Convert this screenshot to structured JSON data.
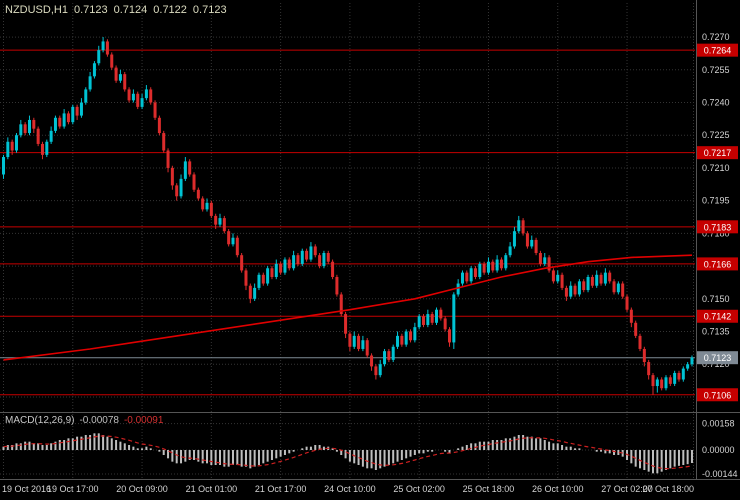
{
  "header": {
    "symbol": "NZDUSD,H1",
    "open": "0.7123",
    "high": "0.7124",
    "low": "0.7122",
    "close": "0.7123"
  },
  "colors": {
    "background": "#000000",
    "grid": "#343434",
    "bull": "#00c3d4",
    "bear": "#dd2c2c",
    "line_red": "#c60000",
    "ma": "#e00000",
    "hist": "#bfbfbf",
    "signal": "#cc2020",
    "axis_text": "#d4d4d4",
    "current_label_bg": "#7f8a95",
    "divider": "#555555"
  },
  "chart_data": {
    "type": "candlestick",
    "symbol": "NZDUSD",
    "timeframe": "H1",
    "y_axis": {
      "ticks": [
        "0.7270",
        "0.7255",
        "0.7240",
        "0.7225",
        "0.7210",
        "0.7195",
        "0.7180",
        "0.7165",
        "0.7150",
        "0.7135",
        "0.7120",
        "0.7105"
      ],
      "min": 0.7099,
      "max": 0.7287
    },
    "x_axis": {
      "labels": [
        "19 Oct 2016",
        "19 Oct 17:00",
        "20 Oct 09:00",
        "21 Oct 01:00",
        "21 Oct 17:00",
        "24 Oct 10:00",
        "25 Oct 02:00",
        "25 Oct 18:00",
        "26 Oct 10:00",
        "27 Oct 02:00",
        "27 Oct 18:00"
      ],
      "candles_per_label": 16
    },
    "hlines": [
      {
        "price": 0.7264,
        "label": "0.7264"
      },
      {
        "price": 0.7217,
        "label": "0.7217"
      },
      {
        "price": 0.7183,
        "label": "0.7183"
      },
      {
        "price": 0.7166,
        "label": "0.7166"
      },
      {
        "price": 0.7142,
        "label": "0.7142"
      },
      {
        "price": 0.7106,
        "label": "0.7106"
      }
    ],
    "current_price": {
      "price": 0.7123,
      "label": "0.7123"
    },
    "candles": [
      [
        0.7207,
        0.7216,
        0.7205,
        0.7215
      ],
      [
        0.7215,
        0.7224,
        0.7214,
        0.7222
      ],
      [
        0.7222,
        0.7223,
        0.7216,
        0.7218
      ],
      [
        0.7218,
        0.7226,
        0.7217,
        0.7225
      ],
      [
        0.7225,
        0.7232,
        0.7224,
        0.723
      ],
      [
        0.723,
        0.7231,
        0.7225,
        0.7226
      ],
      [
        0.7226,
        0.7234,
        0.7225,
        0.7232
      ],
      [
        0.7232,
        0.7233,
        0.7226,
        0.7228
      ],
      [
        0.7228,
        0.7229,
        0.722,
        0.7221
      ],
      [
        0.7221,
        0.7222,
        0.7214,
        0.7216
      ],
      [
        0.7216,
        0.7223,
        0.7215,
        0.7222
      ],
      [
        0.7222,
        0.7229,
        0.7221,
        0.7227
      ],
      [
        0.7227,
        0.7234,
        0.7226,
        0.7233
      ],
      [
        0.7233,
        0.7234,
        0.7228,
        0.7229
      ],
      [
        0.7229,
        0.7237,
        0.7228,
        0.7235
      ],
      [
        0.7235,
        0.7236,
        0.723,
        0.7231
      ],
      [
        0.7231,
        0.7239,
        0.723,
        0.7238
      ],
      [
        0.7238,
        0.7239,
        0.7232,
        0.7234
      ],
      [
        0.7234,
        0.7242,
        0.7233,
        0.724
      ],
      [
        0.724,
        0.7247,
        0.7239,
        0.7246
      ],
      [
        0.7246,
        0.7254,
        0.7245,
        0.7252
      ],
      [
        0.7252,
        0.7259,
        0.7251,
        0.7258
      ],
      [
        0.7258,
        0.7266,
        0.7257,
        0.7264
      ],
      [
        0.7264,
        0.727,
        0.7263,
        0.7268
      ],
      [
        0.7268,
        0.7269,
        0.7261,
        0.7262
      ],
      [
        0.7262,
        0.7263,
        0.7255,
        0.7256
      ],
      [
        0.7256,
        0.7257,
        0.7249,
        0.725
      ],
      [
        0.725,
        0.7255,
        0.7249,
        0.7253
      ],
      [
        0.7253,
        0.7254,
        0.7245,
        0.7246
      ],
      [
        0.7246,
        0.7247,
        0.724,
        0.7241
      ],
      [
        0.7241,
        0.7246,
        0.724,
        0.7244
      ],
      [
        0.7244,
        0.7245,
        0.7237,
        0.7238
      ],
      [
        0.7238,
        0.7244,
        0.7237,
        0.7242
      ],
      [
        0.7242,
        0.7248,
        0.7241,
        0.7246
      ],
      [
        0.7246,
        0.7247,
        0.7239,
        0.724
      ],
      [
        0.724,
        0.7241,
        0.7232,
        0.7233
      ],
      [
        0.7233,
        0.7234,
        0.7225,
        0.7226
      ],
      [
        0.7226,
        0.7227,
        0.7217,
        0.7218
      ],
      [
        0.7218,
        0.7219,
        0.7208,
        0.721
      ],
      [
        0.721,
        0.7211,
        0.72,
        0.7202
      ],
      [
        0.7202,
        0.7203,
        0.7195,
        0.7197
      ],
      [
        0.7197,
        0.7207,
        0.7196,
        0.7205
      ],
      [
        0.7205,
        0.7215,
        0.7204,
        0.7213
      ],
      [
        0.7213,
        0.7214,
        0.7206,
        0.7207
      ],
      [
        0.7207,
        0.7208,
        0.7199,
        0.72
      ],
      [
        0.72,
        0.7201,
        0.7195,
        0.7196
      ],
      [
        0.7196,
        0.7197,
        0.719,
        0.7191
      ],
      [
        0.7191,
        0.7196,
        0.719,
        0.7194
      ],
      [
        0.7194,
        0.7195,
        0.7187,
        0.7188
      ],
      [
        0.7188,
        0.7189,
        0.7182,
        0.7184
      ],
      [
        0.7184,
        0.7189,
        0.7183,
        0.7187
      ],
      [
        0.7187,
        0.7188,
        0.718,
        0.7181
      ],
      [
        0.7181,
        0.7182,
        0.7174,
        0.7175
      ],
      [
        0.7175,
        0.718,
        0.7174,
        0.7178
      ],
      [
        0.7178,
        0.7179,
        0.7169,
        0.717
      ],
      [
        0.717,
        0.7171,
        0.7162,
        0.7163
      ],
      [
        0.7163,
        0.7164,
        0.7154,
        0.7156
      ],
      [
        0.7156,
        0.7157,
        0.7148,
        0.715
      ],
      [
        0.715,
        0.7157,
        0.7149,
        0.7155
      ],
      [
        0.7155,
        0.7162,
        0.7154,
        0.7161
      ],
      [
        0.7161,
        0.7162,
        0.7156,
        0.7157
      ],
      [
        0.7157,
        0.7165,
        0.7156,
        0.7164
      ],
      [
        0.7164,
        0.7165,
        0.7159,
        0.716
      ],
      [
        0.716,
        0.7168,
        0.7159,
        0.7166
      ],
      [
        0.7166,
        0.7167,
        0.7161,
        0.7162
      ],
      [
        0.7162,
        0.7169,
        0.7161,
        0.7168
      ],
      [
        0.7168,
        0.7169,
        0.7163,
        0.7164
      ],
      [
        0.7164,
        0.7172,
        0.7163,
        0.717
      ],
      [
        0.717,
        0.7171,
        0.7165,
        0.7166
      ],
      [
        0.7166,
        0.7173,
        0.7165,
        0.7172
      ],
      [
        0.7172,
        0.7173,
        0.7167,
        0.7168
      ],
      [
        0.7168,
        0.7176,
        0.7167,
        0.7174
      ],
      [
        0.7174,
        0.7175,
        0.7169,
        0.717
      ],
      [
        0.717,
        0.7171,
        0.7164,
        0.7165
      ],
      [
        0.7165,
        0.7172,
        0.7164,
        0.7171
      ],
      [
        0.7171,
        0.7172,
        0.7166,
        0.7167
      ],
      [
        0.7167,
        0.7168,
        0.7159,
        0.716
      ],
      [
        0.716,
        0.7161,
        0.7151,
        0.7152
      ],
      [
        0.7152,
        0.7153,
        0.7142,
        0.7143
      ],
      [
        0.7143,
        0.7144,
        0.7132,
        0.7134
      ],
      [
        0.7134,
        0.7135,
        0.7126,
        0.7128
      ],
      [
        0.7128,
        0.7135,
        0.7127,
        0.7133
      ],
      [
        0.7133,
        0.7134,
        0.7126,
        0.7127
      ],
      [
        0.7127,
        0.7133,
        0.7126,
        0.7131
      ],
      [
        0.7131,
        0.7132,
        0.7123,
        0.7124
      ],
      [
        0.7124,
        0.7125,
        0.7117,
        0.7119
      ],
      [
        0.7119,
        0.712,
        0.7113,
        0.7115
      ],
      [
        0.7115,
        0.7122,
        0.7114,
        0.712
      ],
      [
        0.712,
        0.7127,
        0.7119,
        0.7126
      ],
      [
        0.7126,
        0.7127,
        0.7121,
        0.7122
      ],
      [
        0.7122,
        0.7129,
        0.7121,
        0.7128
      ],
      [
        0.7128,
        0.7135,
        0.7127,
        0.7133
      ],
      [
        0.7133,
        0.7134,
        0.7128,
        0.7129
      ],
      [
        0.7129,
        0.7136,
        0.7128,
        0.7135
      ],
      [
        0.7135,
        0.7136,
        0.713,
        0.7131
      ],
      [
        0.7131,
        0.7139,
        0.713,
        0.7137
      ],
      [
        0.7137,
        0.7143,
        0.7136,
        0.7142
      ],
      [
        0.7142,
        0.7143,
        0.7137,
        0.7138
      ],
      [
        0.7138,
        0.7145,
        0.7137,
        0.7143
      ],
      [
        0.7143,
        0.7144,
        0.7138,
        0.7139
      ],
      [
        0.7139,
        0.7146,
        0.7138,
        0.7145
      ],
      [
        0.7145,
        0.7146,
        0.714,
        0.7141
      ],
      [
        0.7141,
        0.7142,
        0.7135,
        0.7136
      ],
      [
        0.7136,
        0.7137,
        0.7128,
        0.713
      ],
      [
        0.713,
        0.7153,
        0.7127,
        0.7152
      ],
      [
        0.7152,
        0.7159,
        0.7151,
        0.7157
      ],
      [
        0.7157,
        0.7163,
        0.7156,
        0.7162
      ],
      [
        0.7162,
        0.7163,
        0.7157,
        0.7158
      ],
      [
        0.7158,
        0.7165,
        0.7157,
        0.7164
      ],
      [
        0.7164,
        0.7165,
        0.7159,
        0.716
      ],
      [
        0.716,
        0.7167,
        0.7159,
        0.7166
      ],
      [
        0.7166,
        0.7167,
        0.7161,
        0.7162
      ],
      [
        0.7162,
        0.7169,
        0.7161,
        0.7167
      ],
      [
        0.7167,
        0.7168,
        0.7162,
        0.7163
      ],
      [
        0.7163,
        0.717,
        0.7162,
        0.7168
      ],
      [
        0.7168,
        0.7169,
        0.7163,
        0.7164
      ],
      [
        0.7164,
        0.7171,
        0.7163,
        0.717
      ],
      [
        0.717,
        0.7176,
        0.7169,
        0.7174
      ],
      [
        0.7174,
        0.7183,
        0.7173,
        0.7181
      ],
      [
        0.7181,
        0.7188,
        0.718,
        0.7186
      ],
      [
        0.7186,
        0.7187,
        0.7179,
        0.718
      ],
      [
        0.718,
        0.7181,
        0.7173,
        0.7174
      ],
      [
        0.7174,
        0.7179,
        0.7173,
        0.7177
      ],
      [
        0.7177,
        0.7178,
        0.717,
        0.7171
      ],
      [
        0.7171,
        0.7172,
        0.7165,
        0.7166
      ],
      [
        0.7166,
        0.7171,
        0.7165,
        0.7169
      ],
      [
        0.7169,
        0.717,
        0.7162,
        0.7163
      ],
      [
        0.7163,
        0.7164,
        0.7157,
        0.7158
      ],
      [
        0.7158,
        0.7163,
        0.7157,
        0.7161
      ],
      [
        0.7161,
        0.7162,
        0.7154,
        0.7155
      ],
      [
        0.7155,
        0.7156,
        0.7149,
        0.7151
      ],
      [
        0.7151,
        0.7158,
        0.715,
        0.7156
      ],
      [
        0.7156,
        0.7157,
        0.7151,
        0.7152
      ],
      [
        0.7152,
        0.7159,
        0.7151,
        0.7158
      ],
      [
        0.7158,
        0.7159,
        0.7153,
        0.7154
      ],
      [
        0.7154,
        0.7161,
        0.7153,
        0.716
      ],
      [
        0.716,
        0.7161,
        0.7155,
        0.7156
      ],
      [
        0.7156,
        0.7163,
        0.7155,
        0.7161
      ],
      [
        0.7161,
        0.7162,
        0.7156,
        0.7157
      ],
      [
        0.7157,
        0.7164,
        0.7156,
        0.7162
      ],
      [
        0.7162,
        0.7163,
        0.7157,
        0.7158
      ],
      [
        0.7158,
        0.7159,
        0.7152,
        0.7153
      ],
      [
        0.7153,
        0.7158,
        0.7152,
        0.7157
      ],
      [
        0.7157,
        0.7158,
        0.715,
        0.7151
      ],
      [
        0.7151,
        0.7152,
        0.7144,
        0.7145
      ],
      [
        0.7145,
        0.7146,
        0.7137,
        0.7139
      ],
      [
        0.7139,
        0.714,
        0.7132,
        0.7133
      ],
      [
        0.7133,
        0.7134,
        0.7126,
        0.7127
      ],
      [
        0.7127,
        0.7128,
        0.7119,
        0.7121
      ],
      [
        0.7121,
        0.7122,
        0.7113,
        0.7115
      ],
      [
        0.7115,
        0.7116,
        0.7106,
        0.711
      ],
      [
        0.711,
        0.7114,
        0.7107,
        0.7113
      ],
      [
        0.7113,
        0.7114,
        0.7108,
        0.7109
      ],
      [
        0.7109,
        0.7115,
        0.7108,
        0.7114
      ],
      [
        0.7114,
        0.7115,
        0.711,
        0.7111
      ],
      [
        0.7111,
        0.7117,
        0.711,
        0.7116
      ],
      [
        0.7116,
        0.7117,
        0.7112,
        0.7113
      ],
      [
        0.7113,
        0.7119,
        0.7112,
        0.7118
      ],
      [
        0.7118,
        0.7121,
        0.7117,
        0.712
      ],
      [
        0.712,
        0.7124,
        0.7119,
        0.7123
      ]
    ],
    "ma_points": [
      [
        0,
        0.7122
      ],
      [
        20,
        0.7127
      ],
      [
        40,
        0.7133
      ],
      [
        60,
        0.7139
      ],
      [
        80,
        0.7145
      ],
      [
        95,
        0.715
      ],
      [
        105,
        0.7155
      ],
      [
        115,
        0.716
      ],
      [
        125,
        0.7164
      ],
      [
        135,
        0.7167
      ],
      [
        145,
        0.7169
      ],
      [
        159,
        0.717
      ]
    ],
    "macd": {
      "name": "MACD(12,26,9)",
      "value_main": "-0.00078",
      "value_signal": "-0.00091",
      "signal_period": 9,
      "levels": [
        {
          "value": 0.00158,
          "label": "0.00158"
        },
        {
          "value": 0.0,
          "label": "0.00000"
        },
        {
          "value": -0.00144,
          "label": "-0.00144"
        }
      ],
      "histogram": [
        0.0002,
        0.0003,
        0.0003,
        0.0004,
        0.0004,
        0.0005,
        0.0005,
        0.0004,
        0.0004,
        0.0003,
        0.0003,
        0.0004,
        0.0005,
        0.0006,
        0.0006,
        0.0007,
        0.0007,
        0.0008,
        0.0008,
        0.0009,
        0.0009,
        0.001,
        0.001,
        0.0009,
        0.0008,
        0.0007,
        0.0006,
        0.0005,
        0.0004,
        0.0003,
        0.0002,
        0.0001,
        0.0001,
        0.0002,
        0.0001,
        0.0,
        -0.0001,
        -0.0003,
        -0.0005,
        -0.0007,
        -0.0008,
        -0.0008,
        -0.0007,
        -0.0006,
        -0.0006,
        -0.0007,
        -0.0008,
        -0.0008,
        -0.0009,
        -0.0009,
        -0.0009,
        -0.001,
        -0.001,
        -0.0009,
        -0.0009,
        -0.001,
        -0.001,
        -0.0011,
        -0.001,
        -0.0009,
        -0.0008,
        -0.0007,
        -0.0006,
        -0.0005,
        -0.0004,
        -0.0003,
        -0.0002,
        -0.0001,
        0.0,
        0.0001,
        0.0002,
        0.0002,
        0.0003,
        0.0003,
        0.0002,
        0.0002,
        0.0001,
        -0.0001,
        -0.0003,
        -0.0005,
        -0.0007,
        -0.0008,
        -0.0009,
        -0.001,
        -0.0011,
        -0.0011,
        -0.0012,
        -0.0011,
        -0.001,
        -0.0009,
        -0.0008,
        -0.0007,
        -0.0006,
        -0.0005,
        -0.0004,
        -0.0003,
        -0.0002,
        -0.0002,
        -0.0001,
        -0.0001,
        0.0,
        0.0,
        -0.0001,
        -0.0002,
        0.0,
        0.0001,
        0.0002,
        0.0003,
        0.0004,
        0.0004,
        0.0005,
        0.0005,
        0.0005,
        0.0006,
        0.0006,
        0.0006,
        0.0007,
        0.0007,
        0.0008,
        0.0009,
        0.0009,
        0.0008,
        0.0008,
        0.0007,
        0.0007,
        0.0006,
        0.0005,
        0.0004,
        0.0004,
        0.0003,
        0.0002,
        0.0002,
        0.0001,
        0.0001,
        0.0,
        0.0,
        0.0,
        -0.0001,
        -0.0001,
        -0.0002,
        -0.0002,
        -0.0003,
        -0.0003,
        -0.0004,
        -0.0006,
        -0.0008,
        -0.001,
        -0.0011,
        -0.0012,
        -0.0013,
        -0.0014,
        -0.0014,
        -0.0013,
        -0.0012,
        -0.0011,
        -0.001,
        -0.00095,
        -0.0009,
        -0.00085,
        -0.00078
      ]
    }
  }
}
